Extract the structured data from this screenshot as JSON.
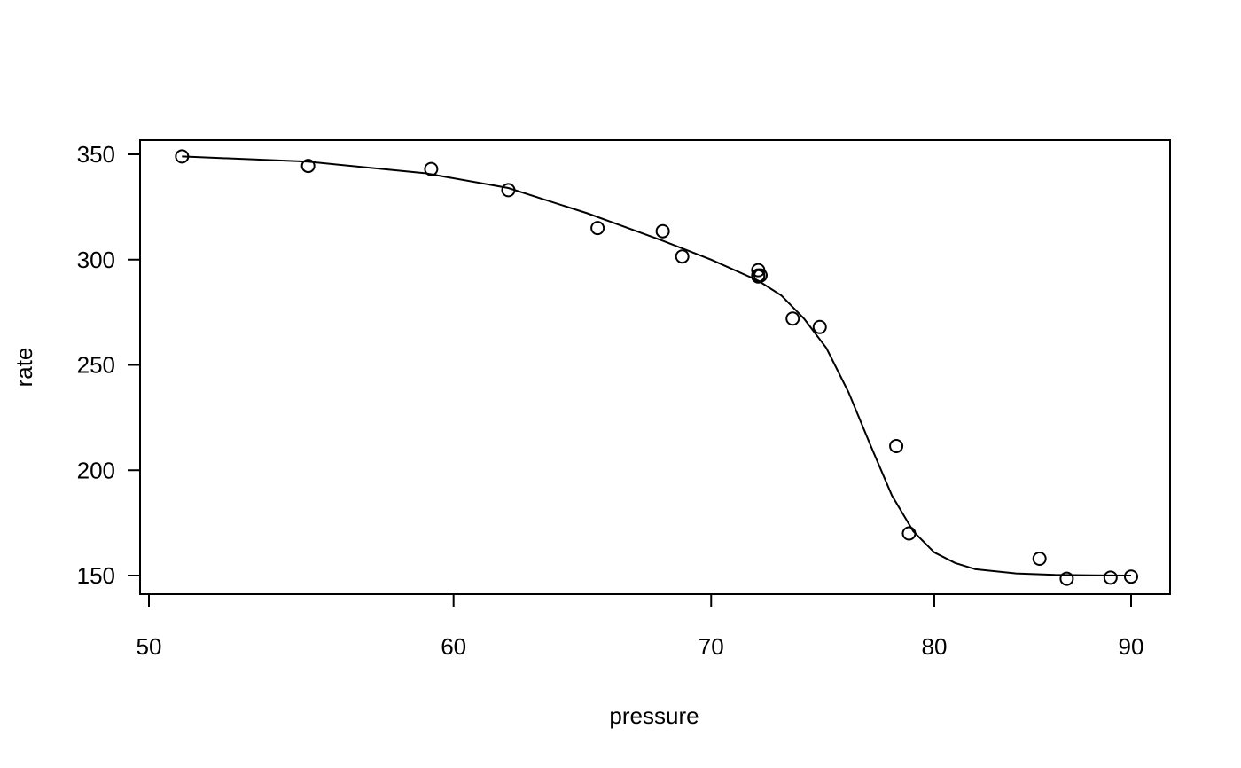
{
  "chart_data": {
    "type": "scatter",
    "title": "",
    "xlabel": "pressure",
    "ylabel": "rate",
    "x_ticks": [
      50,
      60,
      70,
      80,
      90
    ],
    "y_ticks": [
      150,
      200,
      250,
      300,
      350
    ],
    "x_log_scale": true,
    "grid": false,
    "series": [
      {
        "kind": "points",
        "marker": "open-circle",
        "points": [
          {
            "x": 51.0,
            "y": 349
          },
          {
            "x": 55.0,
            "y": 344.5
          },
          {
            "x": 59.2,
            "y": 343
          },
          {
            "x": 62.0,
            "y": 333
          },
          {
            "x": 65.4,
            "y": 315
          },
          {
            "x": 68.0,
            "y": 313.5
          },
          {
            "x": 68.8,
            "y": 301.5
          },
          {
            "x": 72.0,
            "y": 295
          },
          {
            "x": 72.0,
            "y": 292.5
          },
          {
            "x": 72.1,
            "y": 292.5
          },
          {
            "x": 72.0,
            "y": 292
          },
          {
            "x": 73.5,
            "y": 272
          },
          {
            "x": 74.7,
            "y": 268
          },
          {
            "x": 78.2,
            "y": 211.5
          },
          {
            "x": 78.8,
            "y": 170
          },
          {
            "x": 85.2,
            "y": 158
          },
          {
            "x": 86.6,
            "y": 148.5
          },
          {
            "x": 88.9,
            "y": 149
          },
          {
            "x": 90.0,
            "y": 149.5
          }
        ]
      },
      {
        "kind": "line",
        "points": [
          {
            "x": 51,
            "y": 349
          },
          {
            "x": 55,
            "y": 346.5
          },
          {
            "x": 59,
            "y": 341
          },
          {
            "x": 62,
            "y": 334
          },
          {
            "x": 65,
            "y": 322
          },
          {
            "x": 68,
            "y": 309
          },
          {
            "x": 70,
            "y": 300
          },
          {
            "x": 72,
            "y": 290
          },
          {
            "x": 73,
            "y": 283
          },
          {
            "x": 74,
            "y": 272
          },
          {
            "x": 75,
            "y": 258
          },
          {
            "x": 76,
            "y": 237
          },
          {
            "x": 77,
            "y": 212
          },
          {
            "x": 78,
            "y": 188
          },
          {
            "x": 79,
            "y": 171
          },
          {
            "x": 80,
            "y": 161
          },
          {
            "x": 81,
            "y": 156
          },
          {
            "x": 82,
            "y": 153
          },
          {
            "x": 84,
            "y": 151
          },
          {
            "x": 86,
            "y": 150.3
          },
          {
            "x": 88,
            "y": 150.1
          },
          {
            "x": 90,
            "y": 150
          }
        ]
      }
    ]
  }
}
